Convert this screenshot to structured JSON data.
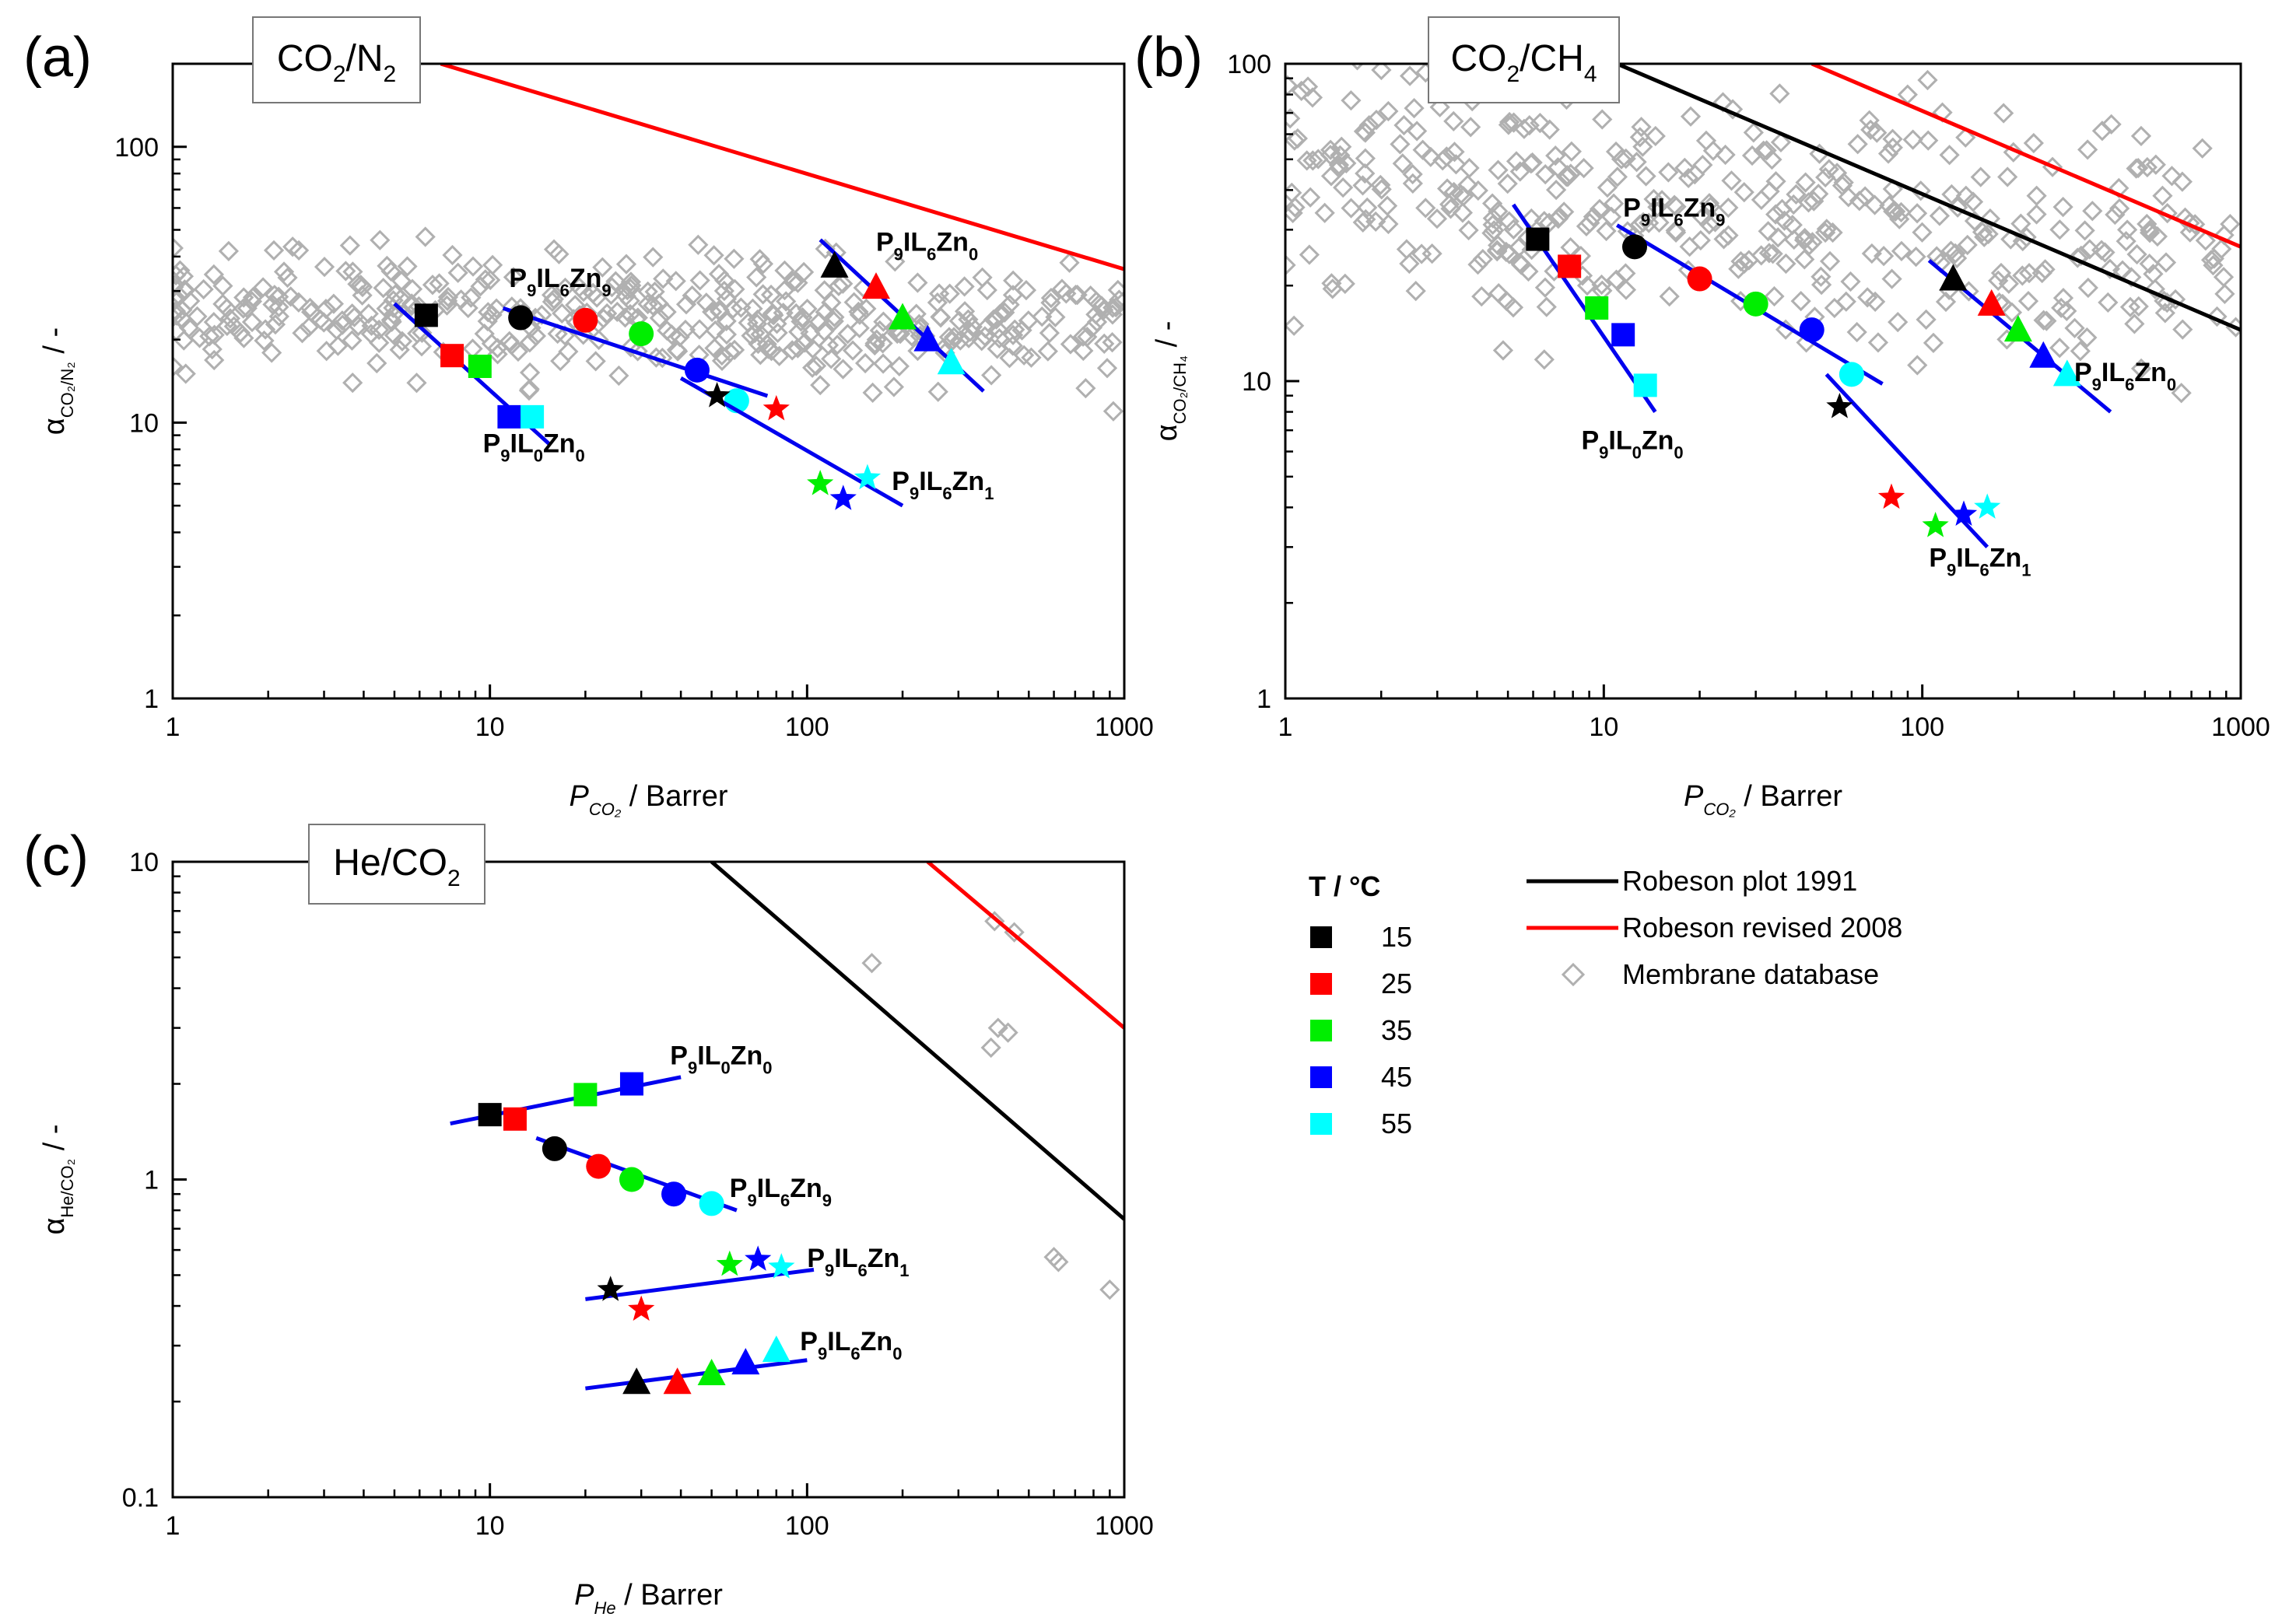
{
  "figure": {
    "panels": [
      {
        "id": "a",
        "letter": "(a)",
        "box_title": {
          "main": "CO",
          "sub1": "2",
          "mid": "/N",
          "sub2": "2"
        },
        "x_label": {
          "italic": "P",
          "sub": "CO₂",
          "rest": " / Barrer"
        },
        "y_label": {
          "greek": "α",
          "sub": "CO₂/N₂",
          "rest": " / -"
        }
      },
      {
        "id": "b",
        "letter": "(b)",
        "box_title": {
          "main": "CO",
          "sub1": "2",
          "mid": "/CH",
          "sub2": "4"
        },
        "x_label": {
          "italic": "P",
          "sub": "CO₂",
          "rest": " / Barrer"
        },
        "y_label": {
          "greek": "α",
          "sub": "CO₂/CH₄",
          "rest": " / -"
        }
      },
      {
        "id": "c",
        "letter": "(c)",
        "box_title": {
          "main": "He/CO",
          "sub1": "2",
          "mid": "",
          "sub2": ""
        },
        "x_label": {
          "italic": "P",
          "sub": "He",
          "rest": " / Barrer"
        },
        "y_label": {
          "greek": "α",
          "sub": "He/CO₂",
          "rest": " / -"
        }
      }
    ],
    "temperature_legend": {
      "title": "T / °C",
      "entries": [
        {
          "label": "15",
          "color": "#000000"
        },
        {
          "label": "25",
          "color": "#ff0000"
        },
        {
          "label": "35",
          "color": "#00ee00"
        },
        {
          "label": "45",
          "color": "#0000ff"
        },
        {
          "label": "55",
          "color": "#00ffff"
        }
      ]
    },
    "line_legend": [
      {
        "label": "Robeson plot 1991",
        "kind": "line",
        "color": "#000000"
      },
      {
        "label": "Robeson revised 2008",
        "kind": "line",
        "color": "#ff0000"
      },
      {
        "label": "Membrane database",
        "kind": "diamond",
        "color": "#b0b0b0"
      }
    ]
  },
  "chart_data": [
    {
      "id": "a",
      "type": "scatter",
      "title": "CO2/N2",
      "xlabel": "P_CO2 / Barrer",
      "ylabel": "α_CO2/N2 / -",
      "xscale": "log",
      "yscale": "log",
      "xlim": [
        1,
        1000
      ],
      "ylim": [
        1,
        200
      ],
      "x_ticks": [
        "1",
        "10",
        "100",
        "1000"
      ],
      "y_ticks": [
        "1",
        "10",
        "100"
      ],
      "robeson_1991": null,
      "robeson_2008": [
        [
          7,
          200
        ],
        [
          1000,
          36
        ]
      ],
      "series": [
        {
          "name": "P9IL0Zn0",
          "marker": "square",
          "label": {
            "text": "P",
            "s1": "9",
            "mid": "IL",
            "s2": "0",
            "tail": "Zn",
            "s3": "0",
            "at": [
              9.5,
              7.8
            ]
          },
          "points": [
            [
              6.3,
              24.5
            ],
            [
              7.6,
              17.5
            ],
            [
              9.3,
              16
            ],
            [
              11.5,
              10.5
            ],
            [
              13.6,
              10.5
            ]
          ],
          "fit": [
            [
              5.0,
              27
            ],
            [
              15.5,
              8.3
            ]
          ]
        },
        {
          "name": "P9IL6Zn9",
          "marker": "circle",
          "label": {
            "text": "P",
            "s1": "9",
            "mid": "IL",
            "s2": "6",
            "tail": "Zn",
            "s3": "9",
            "at": [
              11.5,
              31
            ]
          },
          "points": [
            [
              12.5,
              24
            ],
            [
              20,
              23.5
            ],
            [
              30,
              21
            ],
            [
              45,
              15.5
            ],
            [
              60,
              12
            ]
          ],
          "fit": [
            [
              11,
              26
            ],
            [
              75,
              12.5
            ]
          ]
        },
        {
          "name": "P9IL6Zn1",
          "marker": "star",
          "label": {
            "text": "P",
            "s1": "9",
            "mid": "IL",
            "s2": "6",
            "tail": "Zn",
            "s3": "1",
            "at": [
              185,
              5.7
            ]
          },
          "points": [
            [
              52,
              12.5
            ],
            [
              80,
              11.2
            ],
            [
              110,
              6
            ],
            [
              130,
              5.3
            ],
            [
              155,
              6.3
            ]
          ],
          "fit": [
            [
              40,
              14.5
            ],
            [
              200,
              5
            ]
          ]
        },
        {
          "name": "P9IL6Zn0",
          "marker": "triangle",
          "label": {
            "text": "P",
            "s1": "9",
            "mid": "IL",
            "s2": "6",
            "tail": "Zn",
            "s3": "0",
            "at": [
              165,
              42
            ]
          },
          "points": [
            [
              122,
              37
            ],
            [
              165,
              31
            ],
            [
              200,
              24
            ],
            [
              240,
              20
            ],
            [
              285,
              16.5
            ]
          ],
          "fit": [
            [
              110,
              46
            ],
            [
              360,
              13
            ]
          ]
        }
      ]
    },
    {
      "id": "b",
      "type": "scatter",
      "title": "CO2/CH4",
      "xlabel": "P_CO2 / Barrer",
      "ylabel": "α_CO2/CH4 / -",
      "xscale": "log",
      "yscale": "log",
      "xlim": [
        1,
        1000
      ],
      "ylim": [
        1,
        100
      ],
      "x_ticks": [
        "1",
        "10",
        "100",
        "1000"
      ],
      "y_ticks": [
        "1",
        "10",
        "100"
      ],
      "robeson_1991": [
        [
          11,
          100
        ],
        [
          1000,
          14.5
        ]
      ],
      "robeson_2008": [
        [
          45,
          100
        ],
        [
          1000,
          26.5
        ]
      ],
      "series": [
        {
          "name": "P9IL0Zn0",
          "marker": "square",
          "label": {
            "text": "P",
            "s1": "9",
            "mid": "IL",
            "s2": "0",
            "tail": "Zn",
            "s3": "0",
            "at": [
              8.5,
              6.1
            ]
          },
          "points": [
            [
              6.2,
              28
            ],
            [
              7.8,
              23
            ],
            [
              9.5,
              17
            ],
            [
              11.5,
              14
            ],
            [
              13.5,
              9.7
            ]
          ],
          "fit": [
            [
              5.2,
              36
            ],
            [
              14.5,
              8
            ]
          ]
        },
        {
          "name": "P9IL6Zn9",
          "marker": "circle",
          "label": {
            "text": "P",
            "s1": "9",
            "mid": "IL",
            "s2": "6",
            "tail": "Zn",
            "s3": "9",
            "at": [
              11.5,
              33
            ]
          },
          "points": [
            [
              12.5,
              26.5
            ],
            [
              20,
              21
            ],
            [
              30,
              17.5
            ],
            [
              45,
              14.5
            ],
            [
              60,
              10.5
            ]
          ],
          "fit": [
            [
              11,
              31
            ],
            [
              75,
              9.8
            ]
          ]
        },
        {
          "name": "P9IL6Zn1",
          "marker": "star",
          "label": {
            "text": "P",
            "s1": "9",
            "mid": "IL",
            "s2": "6",
            "tail": "Zn",
            "s3": "1",
            "at": [
              105,
              2.6
            ]
          },
          "points": [
            [
              55,
              8.3
            ],
            [
              80,
              4.3
            ],
            [
              110,
              3.5
            ],
            [
              135,
              3.8
            ],
            [
              160,
              4
            ]
          ],
          "fit": [
            [
              50,
              10.5
            ],
            [
              160,
              3
            ]
          ]
        },
        {
          "name": "P9IL6Zn0",
          "marker": "triangle",
          "label": {
            "text": "P",
            "s1": "9",
            "mid": "IL",
            "s2": "6",
            "tail": "Zn",
            "s3": "0",
            "at": [
              300,
              10
            ]
          },
          "points": [
            [
              125,
              21
            ],
            [
              165,
              17.5
            ],
            [
              200,
              14.5
            ],
            [
              240,
              12
            ],
            [
              285,
              10.5
            ]
          ],
          "fit": [
            [
              105,
              24
            ],
            [
              390,
              8
            ]
          ]
        }
      ]
    },
    {
      "id": "c",
      "type": "scatter",
      "title": "He/CO2",
      "xlabel": "P_He / Barrer",
      "ylabel": "α_He/CO2 / -",
      "xscale": "log",
      "yscale": "log",
      "xlim": [
        1,
        1000
      ],
      "ylim": [
        0.1,
        10
      ],
      "x_ticks": [
        "1",
        "10",
        "100",
        "1000"
      ],
      "y_ticks": [
        "0.1",
        "1",
        "10"
      ],
      "robeson_1991": [
        [
          50,
          10
        ],
        [
          1000,
          0.75
        ]
      ],
      "robeson_2008": [
        [
          240,
          10
        ],
        [
          1000,
          3
        ]
      ],
      "database": [
        [
          390,
          6.5
        ],
        [
          450,
          6
        ],
        [
          160,
          4.8
        ],
        [
          400,
          3
        ],
        [
          430,
          2.9
        ],
        [
          380,
          2.6
        ],
        [
          600,
          0.57
        ],
        [
          620,
          0.55
        ],
        [
          900,
          0.45
        ]
      ],
      "series": [
        {
          "name": "P9IL0Zn0",
          "marker": "square",
          "label": {
            "text": "P",
            "s1": "9",
            "mid": "IL",
            "s2": "0",
            "tail": "Zn",
            "s3": "0",
            "at": [
              37,
              2.3
            ]
          },
          "points": [
            [
              10,
              1.6
            ],
            [
              12,
              1.55
            ],
            [
              20,
              1.85
            ],
            [
              28,
              2.0
            ]
          ],
          "fit": [
            [
              7.5,
              1.5
            ],
            [
              40,
              2.1
            ]
          ]
        },
        {
          "name": "P9IL6Zn9",
          "marker": "circle",
          "label": {
            "text": "P",
            "s1": "9",
            "mid": "IL",
            "s2": "6",
            "tail": "Zn",
            "s3": "9",
            "at": [
              57,
              0.88
            ]
          },
          "points": [
            [
              16,
              1.25
            ],
            [
              22,
              1.1
            ],
            [
              28,
              1.0
            ],
            [
              38,
              0.9
            ],
            [
              50,
              0.84
            ]
          ],
          "fit": [
            [
              14,
              1.35
            ],
            [
              60,
              0.8
            ]
          ]
        },
        {
          "name": "P9IL6Zn1",
          "marker": "star",
          "label": {
            "text": "P",
            "s1": "9",
            "mid": "IL",
            "s2": "6",
            "tail": "Zn",
            "s3": "1",
            "at": [
              100,
              0.53
            ]
          },
          "points": [
            [
              24,
              0.45
            ],
            [
              30,
              0.39
            ],
            [
              57,
              0.54
            ],
            [
              70,
              0.56
            ],
            [
              83,
              0.53
            ]
          ],
          "fit": [
            [
              20,
              0.42
            ],
            [
              105,
              0.52
            ]
          ]
        },
        {
          "name": "P9IL6Zn0",
          "marker": "triangle",
          "label": {
            "text": "P",
            "s1": "9",
            "mid": "IL",
            "s2": "6",
            "tail": "Zn",
            "s3": "0",
            "at": [
              95,
              0.29
            ]
          },
          "points": [
            [
              29,
              0.23
            ],
            [
              39,
              0.23
            ],
            [
              50,
              0.245
            ],
            [
              64,
              0.265
            ],
            [
              80,
              0.29
            ]
          ],
          "fit": [
            [
              20,
              0.22
            ],
            [
              100,
              0.27
            ]
          ]
        }
      ]
    }
  ]
}
